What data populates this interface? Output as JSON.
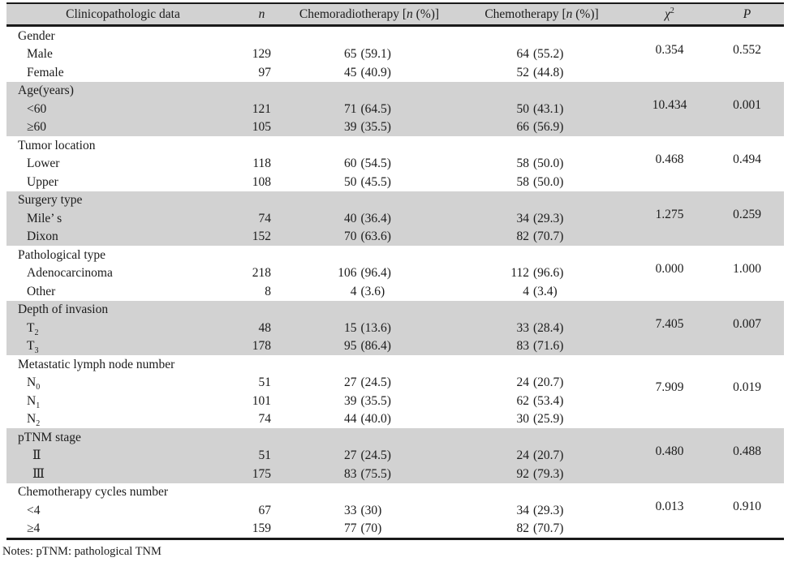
{
  "colors": {
    "band_gray": "#d2d2d2",
    "rule_black": "#1a1a1a",
    "text": "#1b1b1b",
    "background": "#ffffff"
  },
  "header": {
    "clinicopathologic": "Clinicopathologic data",
    "n": "n",
    "chemoradiotherapy": {
      "pre": "Chemoradiotherapy [",
      "it": "n",
      "post": " (%)]"
    },
    "chemotherapy": {
      "pre": "Chemotherapy [",
      "it": "n",
      "post": " (%)]"
    },
    "chi": {
      "base": "χ",
      "sup": "2"
    },
    "p": "P"
  },
  "groups": [
    {
      "label": "Gender",
      "chi": "0.354",
      "p": "0.552",
      "rows": [
        {
          "t": "Male",
          "n": "129",
          "crt_n": "65",
          "crt_p": "(59.1)",
          "ct_n": "64",
          "ct_p": "(55.2)"
        },
        {
          "t": "Female",
          "n": "97",
          "crt_n": "45",
          "crt_p": "(40.9)",
          "ct_n": "52",
          "ct_p": "(44.8)"
        }
      ]
    },
    {
      "label": "Age(years)",
      "chi": "10.434",
      "p": "0.001",
      "rows": [
        {
          "t": "<60",
          "n": "121",
          "crt_n": "71",
          "crt_p": "(64.5)",
          "ct_n": "50",
          "ct_p": "(43.1)"
        },
        {
          "t": "≥60",
          "n": "105",
          "crt_n": "39",
          "crt_p": "(35.5)",
          "ct_n": "66",
          "ct_p": "(56.9)"
        }
      ]
    },
    {
      "label": "Tumor location",
      "chi": "0.468",
      "p": "0.494",
      "rows": [
        {
          "t": "Lower",
          "n": "118",
          "crt_n": "60",
          "crt_p": "(54.5)",
          "ct_n": "58",
          "ct_p": "(50.0)"
        },
        {
          "t": "Upper",
          "n": "108",
          "crt_n": "50",
          "crt_p": "(45.5)",
          "ct_n": "58",
          "ct_p": "(50.0)"
        }
      ]
    },
    {
      "label": "Surgery type",
      "chi": "1.275",
      "p": "0.259",
      "rows": [
        {
          "t": "Mile’ s",
          "n": "74",
          "crt_n": "40",
          "crt_p": "(36.4)",
          "ct_n": "34",
          "ct_p": "(29.3)"
        },
        {
          "t": "Dixon",
          "n": "152",
          "crt_n": "70",
          "crt_p": "(63.6)",
          "ct_n": "82",
          "ct_p": "(70.7)"
        }
      ]
    },
    {
      "label": "Pathological type",
      "chi": "0.000",
      "p": "1.000",
      "rows": [
        {
          "t": "Adenocarcinoma",
          "n": "218",
          "crt_n": "106",
          "crt_p": "(96.4)",
          "ct_n": "112",
          "ct_p": "(96.6)"
        },
        {
          "t": "Other",
          "n": "8",
          "crt_n": "4",
          "crt_p": "(3.6)",
          "ct_n": "4",
          "ct_p": "(3.4)"
        }
      ]
    },
    {
      "label": "Depth of invasion",
      "chi": "7.405",
      "p": "0.007",
      "rows": [
        {
          "t": "T",
          "s": "2",
          "n": "48",
          "crt_n": "15",
          "crt_p": "(13.6)",
          "ct_n": "33",
          "ct_p": "(28.4)"
        },
        {
          "t": "T",
          "s": "3",
          "n": "178",
          "crt_n": "95",
          "crt_p": "(86.4)",
          "ct_n": "83",
          "ct_p": "(71.6)"
        }
      ]
    },
    {
      "label": "Metastatic lymph node number",
      "chi": "7.909",
      "p": "0.019",
      "rows": [
        {
          "t": "N",
          "s": "0",
          "n": "51",
          "crt_n": "27",
          "crt_p": "(24.5)",
          "ct_n": "24",
          "ct_p": "(20.7)"
        },
        {
          "t": "N",
          "s": "1",
          "n": "101",
          "crt_n": "39",
          "crt_p": "(35.5)",
          "ct_n": "62",
          "ct_p": "(53.4)"
        },
        {
          "t": "N",
          "s": "2",
          "n": "74",
          "crt_n": "44",
          "crt_p": "(40.0)",
          "ct_n": "30",
          "ct_p": "(25.9)"
        }
      ]
    },
    {
      "label": "pTNM stage",
      "chi": "0.480",
      "p": "0.488",
      "rows": [
        {
          "t": "Ⅱ",
          "n": "51",
          "crt_n": "27",
          "crt_p": "(24.5)",
          "ct_n": "24",
          "ct_p": "(20.7)"
        },
        {
          "t": "Ⅲ",
          "n": "175",
          "crt_n": "83",
          "crt_p": "(75.5)",
          "ct_n": "92",
          "ct_p": "(79.3)"
        }
      ]
    },
    {
      "label": "Chemotherapy cycles number",
      "chi": "0.013",
      "p": "0.910",
      "rows": [
        {
          "t": "<4",
          "n": "67",
          "crt_n": "33",
          "crt_p": "(30)",
          "ct_n": "34",
          "ct_p": "(29.3)"
        },
        {
          "t": "≥4",
          "n": "159",
          "crt_n": "77",
          "crt_p": "(70)",
          "ct_n": "82",
          "ct_p": "(70.7)"
        }
      ]
    }
  ],
  "notes": "Notes: pTNM: pathological TNM"
}
